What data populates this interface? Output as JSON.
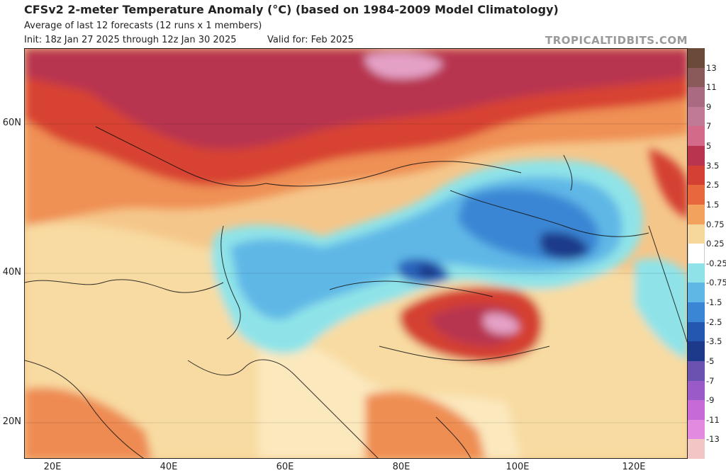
{
  "header": {
    "title": "CFSv2 2-meter Temperature Anomaly (°C) (based on 1984-2009 Model Climatology)",
    "subtitle": "Average of last 12 forecasts (12 runs x 1 members)",
    "init": "Init: 18z Jan 27 2025 through 12z Jan 30 2025",
    "valid": "Valid for: Feb 2025",
    "brand": "TROPICALTIDBITS.COM"
  },
  "map": {
    "lat_labels": [
      "60N",
      "40N",
      "20N"
    ],
    "lon_labels": [
      "20E",
      "40E",
      "60E",
      "80E",
      "100E",
      "120E"
    ]
  },
  "colorbar": {
    "labels": [
      "13",
      "11",
      "9",
      "7",
      "5",
      "3.5",
      "2.5",
      "1.5",
      "0.75",
      "0.25",
      "-0.25",
      "-0.75",
      "-1.5",
      "-2.5",
      "-3.5",
      "-5",
      "-7",
      "-9",
      "-11",
      "-13"
    ],
    "colors": [
      "#6b4a3a",
      "#8a5a5a",
      "#a96a82",
      "#c07a95",
      "#d46a8a",
      "#b8344f",
      "#d44033",
      "#e8673c",
      "#f2a25c",
      "#f7d89c",
      "#ffffff",
      "#8fe3e8",
      "#5fb7e6",
      "#3a86d4",
      "#2458b0",
      "#1d3a8a",
      "#6a52b0",
      "#9a5ac8",
      "#c66ad8",
      "#e28ae0",
      "#f3c6c6"
    ]
  },
  "colors": {
    "warm_strong": "#b8344f",
    "warm": "#e8673c",
    "warm_light": "#f7d89c",
    "neutral": "#ffffff",
    "cool_light": "#8fe3e8",
    "cool": "#3a86d4",
    "cool_strong": "#1d3a8a",
    "pink_peak": "#e4a1c6"
  }
}
